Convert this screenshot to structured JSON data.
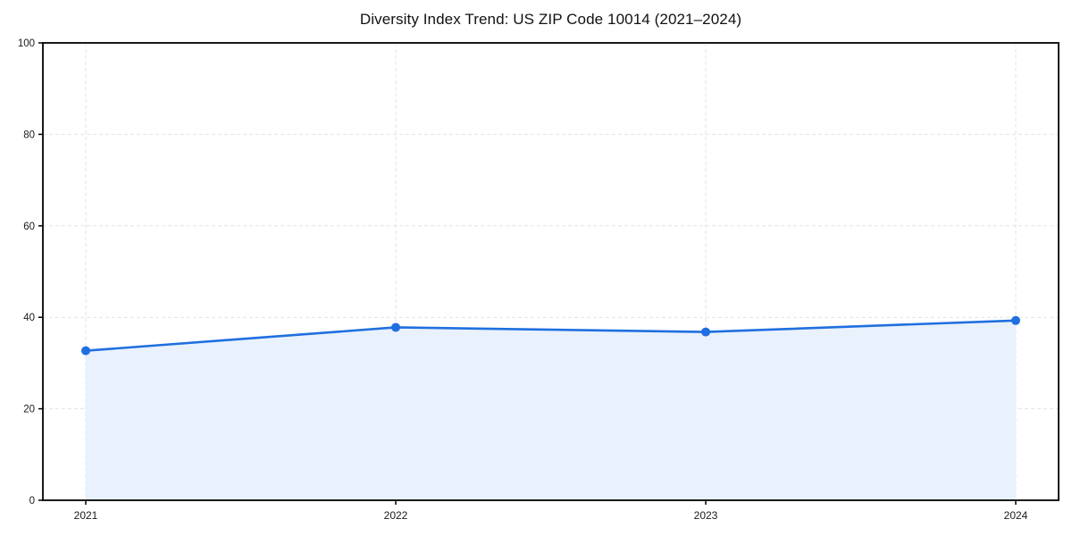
{
  "chart_data": {
    "type": "area",
    "title": "Diversity Index Trend: US ZIP Code 10014 (2021–2024)",
    "x": [
      "2021",
      "2022",
      "2023",
      "2024"
    ],
    "series": [
      {
        "name": "Diversity Index",
        "values": [
          32.7,
          37.8,
          36.8,
          39.3
        ]
      }
    ],
    "xlabel": "",
    "ylabel": "",
    "ylim": [
      0,
      100
    ],
    "yticks": [
      0,
      20,
      40,
      60,
      80,
      100
    ],
    "grid": "dashed-both-axes",
    "legend": "none",
    "colors": {
      "line": "#1f6fe0",
      "marker": "#1f6fe0",
      "area_fill": "#e9f1fc",
      "grid": "#e3e3e3",
      "axis": "#000000",
      "tick_label": "#1a1a1a",
      "background": "#ffffff"
    }
  }
}
